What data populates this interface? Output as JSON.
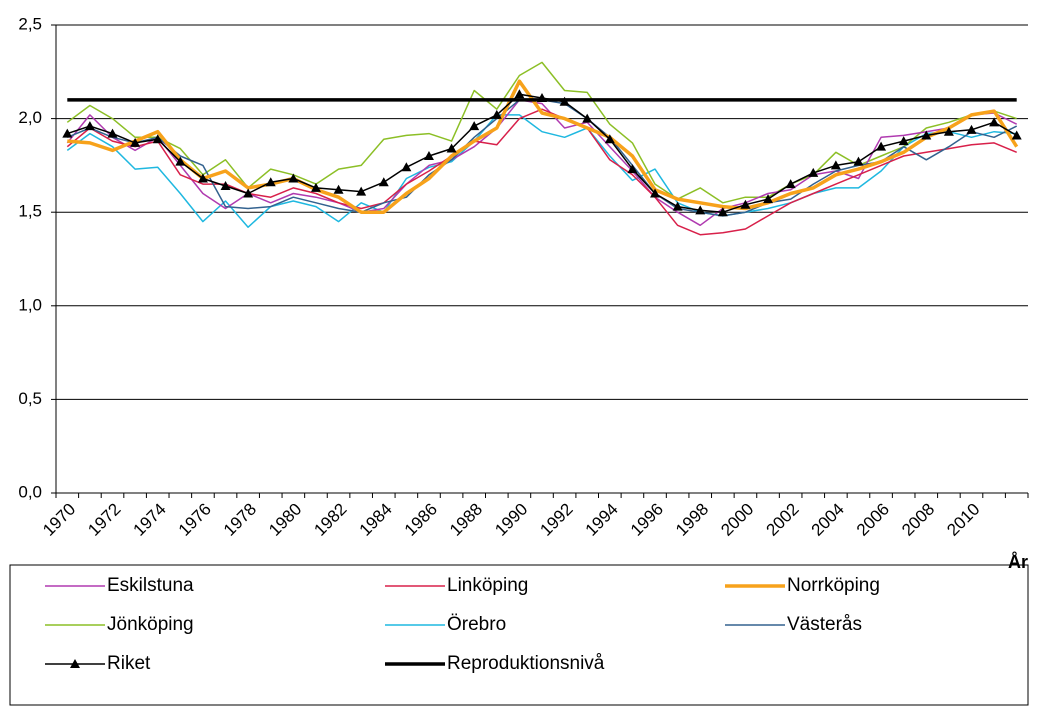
{
  "chart_data": {
    "type": "line",
    "x_label": "År",
    "categories": [
      "1970",
      null,
      "1972",
      null,
      "1974",
      null,
      "1976",
      null,
      "1978",
      null,
      "1980",
      null,
      "1982",
      null,
      "1984",
      null,
      "1986",
      null,
      "1988",
      null,
      "1990",
      null,
      "1992",
      null,
      "1994",
      null,
      "1996",
      null,
      "1998",
      null,
      "2000",
      null,
      "2002",
      null,
      "2004",
      null,
      "2006",
      null,
      "2008",
      null,
      "2010",
      null,
      null
    ],
    "ylim": [
      0,
      2.5
    ],
    "yticks": [
      {
        "value": 0,
        "label": "0,0"
      },
      {
        "value": 0.5,
        "label": "0,5"
      },
      {
        "value": 1,
        "label": "1,0"
      },
      {
        "value": 1.5,
        "label": "1,5"
      },
      {
        "value": 2,
        "label": "2,0"
      },
      {
        "value": 2.5,
        "label": "2,5"
      }
    ],
    "grid": true,
    "legend": "bottom",
    "series": [
      {
        "name": "Eskilstuna",
        "color": "#b03ab0",
        "values": [
          1.87,
          2.02,
          1.9,
          1.83,
          1.9,
          1.75,
          1.6,
          1.52,
          1.6,
          1.55,
          1.6,
          1.58,
          1.55,
          1.5,
          1.52,
          1.65,
          1.75,
          1.78,
          1.85,
          1.95,
          2.1,
          2.08,
          1.95,
          1.98,
          1.85,
          1.72,
          1.58,
          1.5,
          1.43,
          1.52,
          1.55,
          1.6,
          1.62,
          1.7,
          1.72,
          1.68,
          1.9,
          1.91,
          1.93,
          1.95,
          2.02,
          2.03,
          1.97
        ]
      },
      {
        "name": "Linköping",
        "color": "#d8204a",
        "values": [
          1.85,
          1.95,
          1.88,
          1.85,
          1.88,
          1.7,
          1.65,
          1.65,
          1.6,
          1.58,
          1.63,
          1.6,
          1.55,
          1.52,
          1.55,
          1.65,
          1.72,
          1.8,
          1.88,
          1.86,
          2.0,
          2.05,
          2.0,
          1.95,
          1.78,
          1.7,
          1.58,
          1.43,
          1.38,
          1.39,
          1.41,
          1.48,
          1.55,
          1.6,
          1.65,
          1.7,
          1.75,
          1.8,
          1.82,
          1.84,
          1.86,
          1.87,
          1.82
        ]
      },
      {
        "name": "Norrköping",
        "color": "#f7a21b",
        "values": [
          1.88,
          1.87,
          1.83,
          1.88,
          1.93,
          1.78,
          1.68,
          1.72,
          1.63,
          1.65,
          1.68,
          1.62,
          1.58,
          1.5,
          1.5,
          1.6,
          1.68,
          1.8,
          1.88,
          1.95,
          2.2,
          2.03,
          2.0,
          1.95,
          1.9,
          1.8,
          1.62,
          1.57,
          1.55,
          1.53,
          1.52,
          1.55,
          1.6,
          1.63,
          1.7,
          1.73,
          1.77,
          1.82,
          1.9,
          1.95,
          2.02,
          2.04,
          1.85
        ]
      },
      {
        "name": "Jönköping",
        "color": "#8cbf26",
        "values": [
          1.98,
          2.07,
          2.0,
          1.9,
          1.9,
          1.84,
          1.7,
          1.78,
          1.63,
          1.73,
          1.7,
          1.65,
          1.73,
          1.75,
          1.89,
          1.91,
          1.92,
          1.88,
          2.15,
          2.05,
          2.23,
          2.3,
          2.15,
          2.14,
          1.97,
          1.87,
          1.65,
          1.57,
          1.63,
          1.55,
          1.58,
          1.58,
          1.65,
          1.7,
          1.82,
          1.75,
          1.8,
          1.85,
          1.95,
          1.98,
          2.02,
          2.04,
          2.0
        ]
      },
      {
        "name": "Örebro",
        "color": "#1fb8e0",
        "values": [
          1.83,
          1.92,
          1.85,
          1.73,
          1.74,
          1.6,
          1.45,
          1.56,
          1.42,
          1.53,
          1.56,
          1.53,
          1.45,
          1.55,
          1.5,
          1.68,
          1.74,
          1.77,
          1.88,
          2.02,
          2.02,
          1.93,
          1.9,
          1.95,
          1.8,
          1.67,
          1.73,
          1.55,
          1.5,
          1.48,
          1.5,
          1.52,
          1.55,
          1.6,
          1.63,
          1.63,
          1.72,
          1.85,
          1.92,
          1.93,
          1.9,
          1.93,
          1.92
        ]
      },
      {
        "name": "Västerås",
        "color": "#33628f",
        "values": [
          1.9,
          1.95,
          1.9,
          1.87,
          1.9,
          1.8,
          1.75,
          1.53,
          1.52,
          1.53,
          1.58,
          1.55,
          1.52,
          1.5,
          1.55,
          1.58,
          1.7,
          1.78,
          1.9,
          2.0,
          2.1,
          2.1,
          2.08,
          2.0,
          1.9,
          1.75,
          1.6,
          1.52,
          1.5,
          1.48,
          1.5,
          1.55,
          1.57,
          1.65,
          1.72,
          1.75,
          1.77,
          1.85,
          1.78,
          1.85,
          1.93,
          1.9,
          1.96
        ]
      },
      {
        "name": "Riket",
        "color": "#000000",
        "marker": "triangle",
        "values": [
          1.92,
          1.96,
          1.92,
          1.87,
          1.89,
          1.77,
          1.68,
          1.64,
          1.6,
          1.66,
          1.68,
          1.63,
          1.62,
          1.61,
          1.66,
          1.74,
          1.8,
          1.84,
          1.96,
          2.02,
          2.13,
          2.11,
          2.09,
          2.0,
          1.89,
          1.73,
          1.6,
          1.53,
          1.51,
          1.5,
          1.54,
          1.57,
          1.65,
          1.71,
          1.75,
          1.77,
          1.85,
          1.88,
          1.91,
          1.93,
          1.94,
          1.98,
          1.91
        ]
      },
      {
        "name": "Reproduktionsnivå",
        "color": "#000000",
        "values": [
          2.1,
          2.1,
          2.1,
          2.1,
          2.1,
          2.1,
          2.1,
          2.1,
          2.1,
          2.1,
          2.1,
          2.1,
          2.1,
          2.1,
          2.1,
          2.1,
          2.1,
          2.1,
          2.1,
          2.1,
          2.1,
          2.1,
          2.1,
          2.1,
          2.1,
          2.1,
          2.1,
          2.1,
          2.1,
          2.1,
          2.1,
          2.1,
          2.1,
          2.1,
          2.1,
          2.1,
          2.1,
          2.1,
          2.1,
          2.1,
          2.1,
          2.1,
          2.1
        ]
      }
    ]
  }
}
